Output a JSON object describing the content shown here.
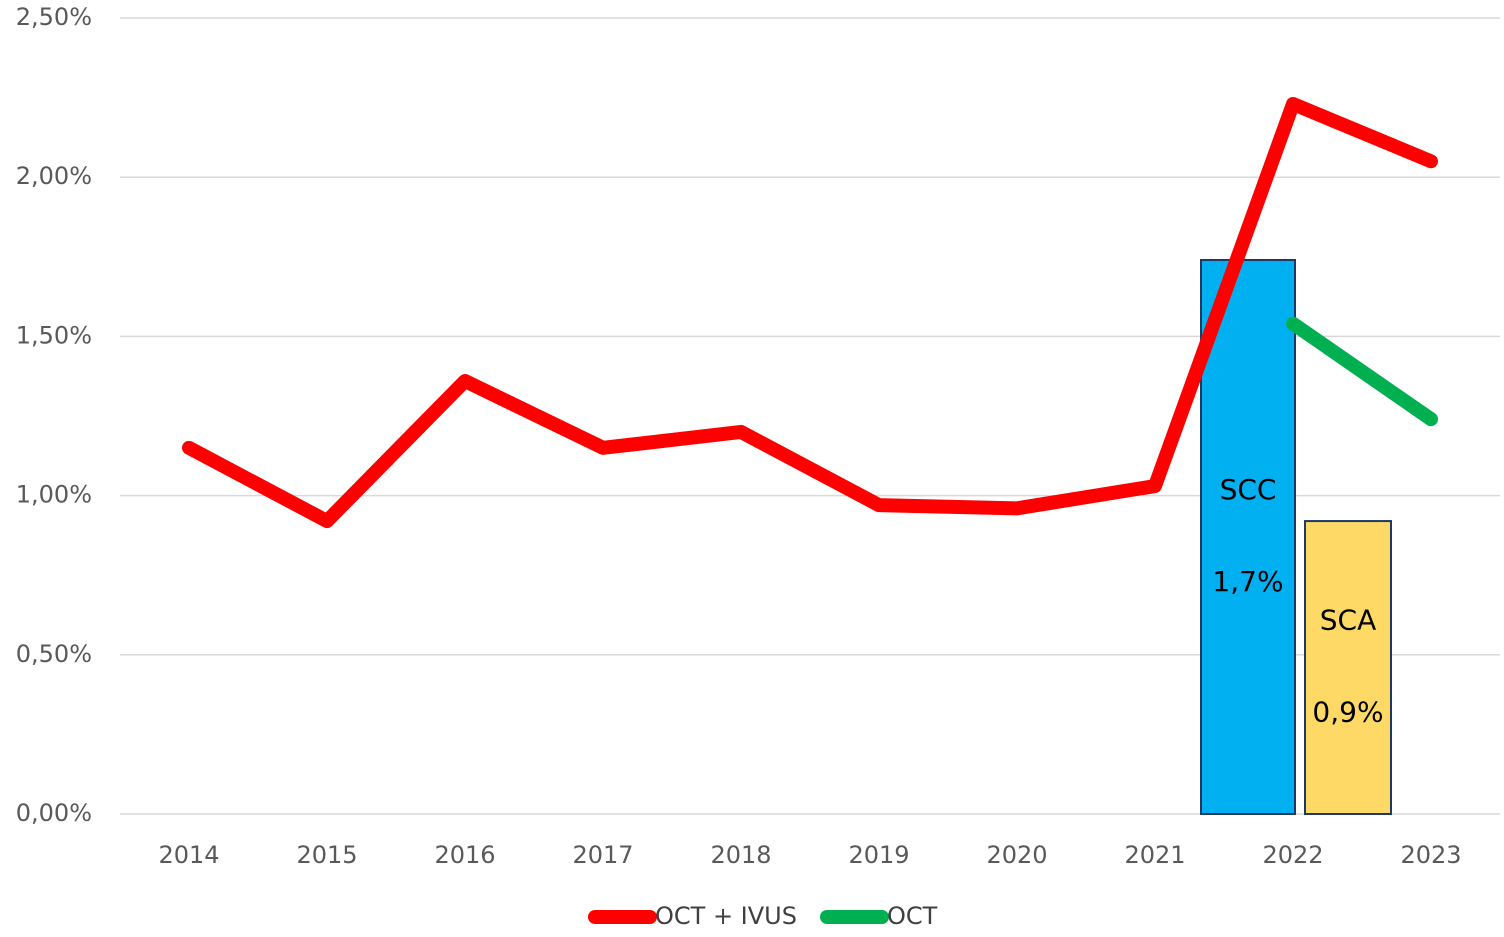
{
  "chart_data": {
    "type": "line",
    "categories": [
      "2014",
      "2015",
      "2016",
      "2017",
      "2018",
      "2019",
      "2020",
      "2021",
      "2022",
      "2023"
    ],
    "series": [
      {
        "name": "OCT + IVUS",
        "color": "#ff0000",
        "values": [
          1.15,
          0.92,
          1.36,
          1.15,
          1.2,
          0.97,
          0.96,
          1.03,
          2.23,
          2.05
        ]
      },
      {
        "name": "OCT",
        "color": "#00b050",
        "values": [
          null,
          null,
          null,
          null,
          null,
          null,
          null,
          null,
          1.54,
          1.24
        ]
      }
    ],
    "bars": [
      {
        "name": "SCC",
        "category": "2022",
        "value": 1.74,
        "value_label": "1,7%",
        "color": "#00b0f0"
      },
      {
        "name": "SCA",
        "category": "2022",
        "value": 0.92,
        "value_label": "0,9%",
        "color": "#ffd966"
      }
    ],
    "ylim": [
      0,
      2.5
    ],
    "yticks": [
      {
        "value": 0,
        "label": "0,00%"
      },
      {
        "value": 0.5,
        "label": "0,50%"
      },
      {
        "value": 1,
        "label": "1,00%"
      },
      {
        "value": 1.5,
        "label": "1,50%"
      },
      {
        "value": 2,
        "label": "2,00%"
      },
      {
        "value": 2.5,
        "label": "2,50%"
      }
    ],
    "grid": true,
    "legend": "bottom"
  }
}
